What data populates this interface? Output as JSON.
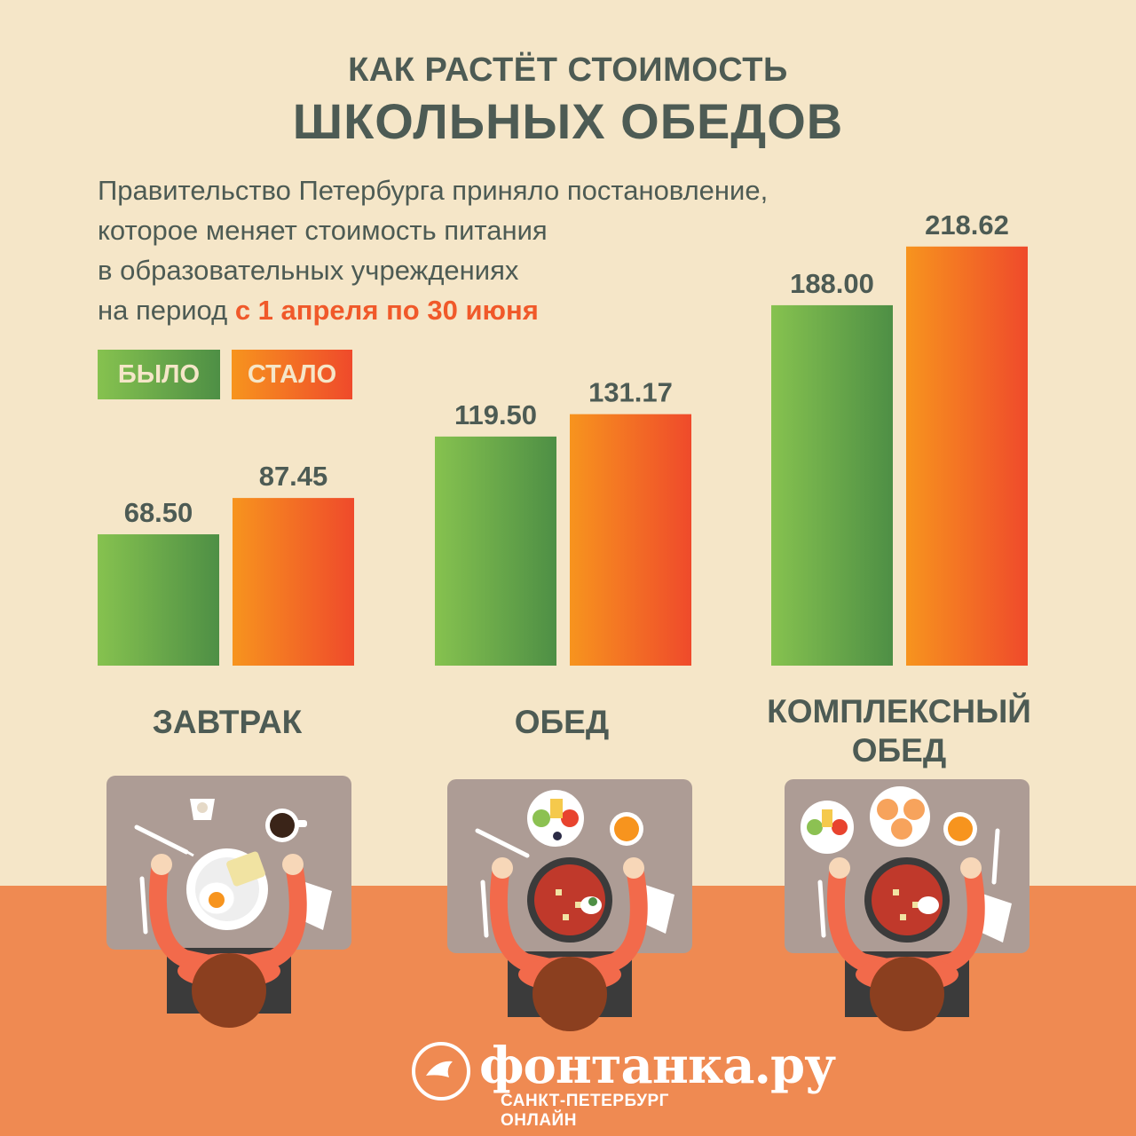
{
  "title_line1": "КАК РАСТЁТ СТОИМОСТЬ",
  "title_line2": "ШКОЛЬНЫХ ОБЕДОВ",
  "subtitle_lines": [
    "Правительство Петербурга приняло постановление,",
    "которое меняет стоимость питания",
    "в образовательных учреждениях"
  ],
  "subtitle_last_prefix": "на период ",
  "subtitle_last_highlight": "с 1 апреля по 30 июня",
  "colors": {
    "background": "#f5e6c8",
    "floor": "#ef8a52",
    "old_dark": "#4e8f45",
    "old_light": "#86c24f",
    "new_light": "#f7941e",
    "new_dark": "#ef4a2b",
    "text": "#4d5b54",
    "highlight": "#f0592a"
  },
  "chart_data": {
    "type": "bar",
    "categories": [
      "ЗАВТРАК",
      "ОБЕД",
      "КОМПЛЕКСНЫЙ ОБЕД"
    ],
    "category_lines": [
      [
        "ЗАВТРАК"
      ],
      [
        "ОБЕД"
      ],
      [
        "КОМПЛЕКСНЫЙ",
        "ОБЕД"
      ]
    ],
    "series": [
      {
        "name": "БЫЛО",
        "values": [
          68.5,
          119.5,
          188.0
        ],
        "labels": [
          "68.50",
          "119.50",
          "188.00"
        ],
        "color": "green"
      },
      {
        "name": "СТАЛО",
        "values": [
          87.45,
          131.17,
          218.62
        ],
        "labels": [
          "87.45",
          "131.17",
          "218.62"
        ],
        "color": "orange"
      }
    ],
    "legend": "top-left",
    "grid": false,
    "title": "КАК РАСТЁТ СТОИМОСТЬ ШКОЛЬНЫХ ОБЕДОВ"
  },
  "logo": {
    "name": "фонтанка.ру",
    "subtitle": "САНКТ-ПЕТЕРБУРГ ОНЛАЙН",
    "icon": "fontanka-bird-logo-icon"
  },
  "illustrations": [
    "breakfast-table-illustration",
    "lunch-table-illustration",
    "complex-lunch-table-illustration"
  ]
}
